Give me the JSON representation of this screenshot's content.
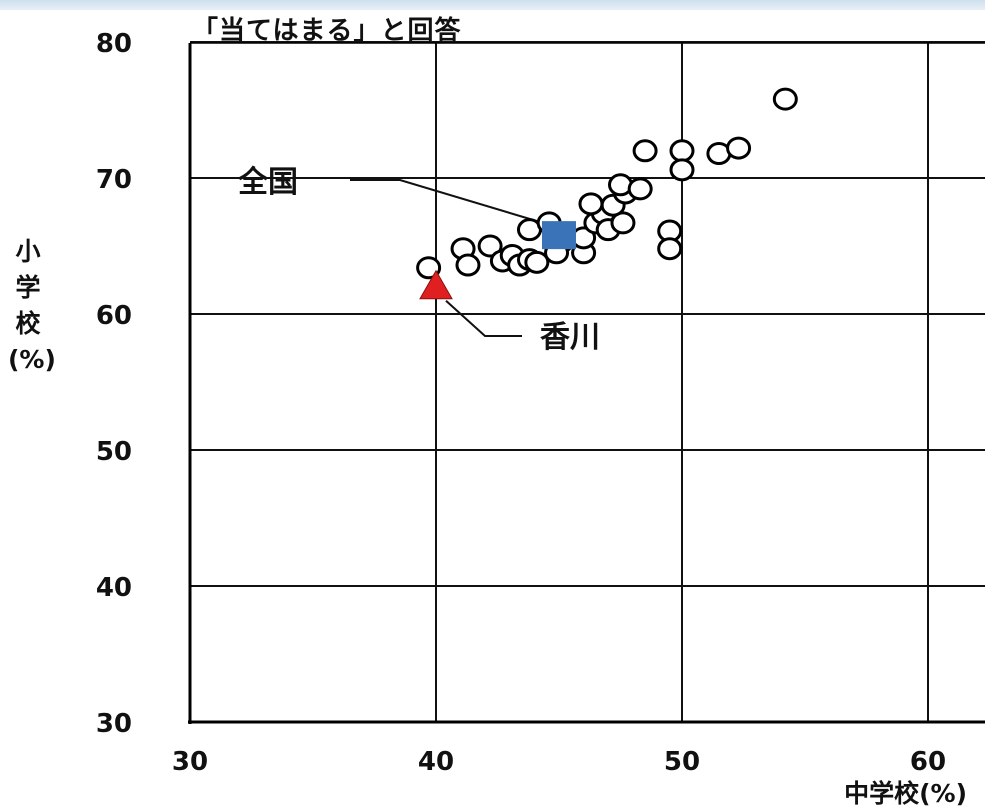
{
  "chart_data": {
    "type": "scatter",
    "title": "「当てはまる」と回答",
    "xlabel": "中学校(%)",
    "ylabel": "小学校(%)",
    "xlim": [
      30,
      60
    ],
    "ylim": [
      30,
      80
    ],
    "xticks": [
      30,
      40,
      50,
      60
    ],
    "yticks": [
      30,
      40,
      50,
      60,
      70,
      80
    ],
    "grid": true,
    "series": [
      {
        "marker": "open-circle",
        "color": "#000000",
        "points": [
          [
            39.7,
            63.4
          ],
          [
            41.1,
            64.8
          ],
          [
            41.3,
            63.6
          ],
          [
            42.2,
            65.0
          ],
          [
            42.7,
            63.9
          ],
          [
            43.1,
            64.3
          ],
          [
            43.4,
            63.6
          ],
          [
            43.8,
            64.0
          ],
          [
            44.1,
            63.8
          ],
          [
            43.8,
            66.2
          ],
          [
            44.6,
            66.7
          ],
          [
            45.1,
            65.3
          ],
          [
            44.9,
            64.5
          ],
          [
            46.0,
            64.5
          ],
          [
            46.0,
            65.6
          ],
          [
            46.5,
            66.7
          ],
          [
            46.8,
            67.4
          ],
          [
            47.0,
            66.2
          ],
          [
            47.6,
            66.7
          ],
          [
            46.3,
            68.1
          ],
          [
            47.2,
            68.0
          ],
          [
            47.7,
            68.9
          ],
          [
            47.5,
            69.5
          ],
          [
            48.3,
            69.2
          ],
          [
            48.5,
            72.0
          ],
          [
            49.5,
            66.1
          ],
          [
            49.5,
            64.8
          ],
          [
            50.0,
            72.0
          ],
          [
            50.0,
            70.6
          ],
          [
            51.5,
            71.8
          ],
          [
            52.3,
            72.2
          ],
          [
            54.2,
            75.8
          ]
        ]
      },
      {
        "name": "全国",
        "marker": "filled-square",
        "color": "#3a73b8",
        "points": [
          [
            45.0,
            65.8
          ]
        ]
      },
      {
        "name": "香川",
        "marker": "filled-triangle",
        "color": "#e02020",
        "points": [
          [
            40.0,
            62.0
          ]
        ]
      }
    ],
    "annotations": [
      {
        "text": "全国",
        "target_series": 1
      },
      {
        "text": "香川",
        "target_series": 2
      }
    ]
  }
}
